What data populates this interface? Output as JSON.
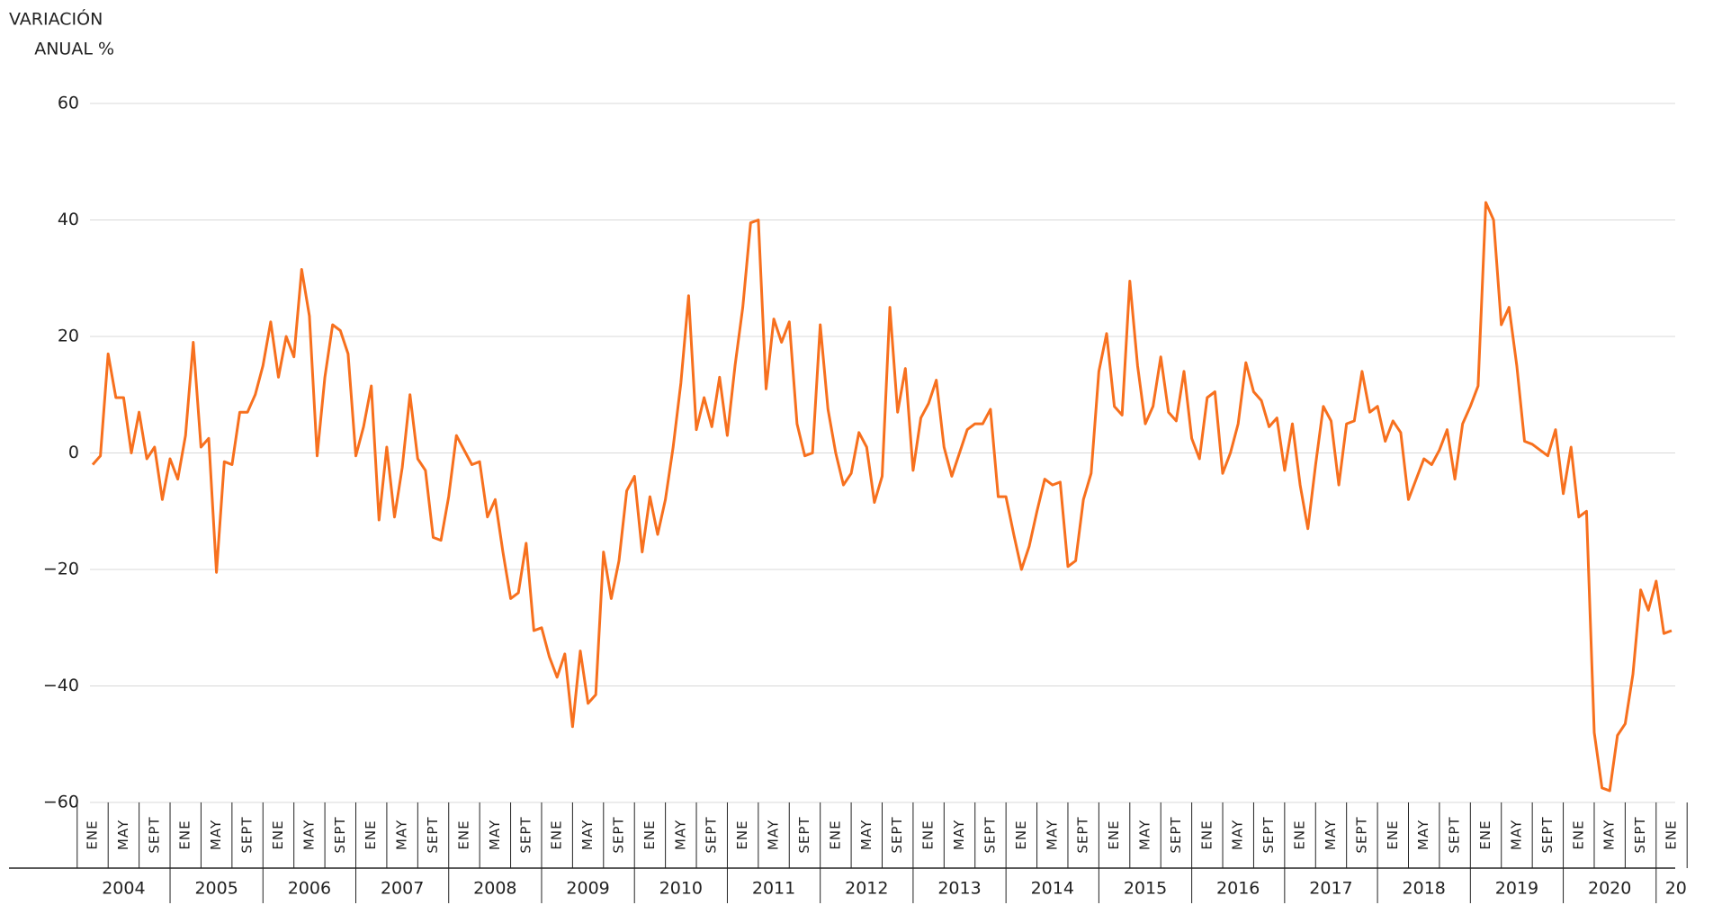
{
  "chart_data": {
    "type": "line",
    "y_title": [
      "VARIACIÓN",
      "ANUAL %"
    ],
    "years": [
      "2004",
      "2005",
      "2006",
      "2007",
      "2008",
      "2009",
      "2010",
      "2011",
      "2012",
      "2013",
      "2014",
      "2015",
      "2016",
      "2017",
      "2018",
      "2019",
      "2020",
      "20"
    ],
    "categories": [
      "ENE",
      null,
      null,
      null,
      "MAY",
      null,
      null,
      null,
      "SEPT",
      null,
      null,
      null,
      "ENE",
      null,
      null,
      null,
      "MAY",
      null,
      null,
      null,
      "SEPT",
      null,
      null,
      null,
      "ENE",
      null,
      null,
      null,
      "MAY",
      null,
      null,
      null,
      "SEPT",
      null,
      null,
      null,
      "ENE",
      null,
      null,
      null,
      "MAY",
      null,
      null,
      null,
      "SEPT",
      null,
      null,
      null,
      "ENE",
      null,
      null,
      null,
      "MAY",
      null,
      null,
      null,
      "SEPT",
      null,
      null,
      null,
      "ENE",
      null,
      null,
      null,
      "MAY",
      null,
      null,
      null,
      "SEPT",
      null,
      null,
      null,
      "ENE",
      null,
      null,
      null,
      "MAY",
      null,
      null,
      null,
      "SEPT",
      null,
      null,
      null,
      "ENE",
      null,
      null,
      null,
      "MAY",
      null,
      null,
      null,
      "SEPT",
      null,
      null,
      null,
      "ENE",
      null,
      null,
      null,
      "MAY",
      null,
      null,
      null,
      "SEPT",
      null,
      null,
      null,
      "ENE",
      null,
      null,
      null,
      "MAY",
      null,
      null,
      null,
      "SEPT",
      null,
      null,
      null,
      "ENE",
      null,
      null,
      null,
      "MAY",
      null,
      null,
      null,
      "SEPT",
      null,
      null,
      null,
      "ENE",
      null,
      null,
      null,
      "MAY",
      null,
      null,
      null,
      "SEPT",
      null,
      null,
      null,
      "ENE",
      null,
      null,
      null,
      "MAY",
      null,
      null,
      null,
      "SEPT",
      null,
      null,
      null,
      "ENE",
      null,
      null,
      null,
      "MAY",
      null,
      null,
      null,
      "SEPT",
      null,
      null,
      null,
      "ENE",
      null,
      null,
      null,
      "MAY",
      null,
      null,
      null,
      "SEPT",
      null,
      null,
      null,
      "ENE",
      null,
      null,
      null,
      "MAY",
      null,
      null,
      null,
      "SEPT",
      null,
      null,
      null,
      "ENE",
      null,
      null,
      null,
      "MAY",
      null,
      null,
      null,
      "SEPT",
      null,
      null,
      null,
      "ENE"
    ],
    "series": [
      {
        "color": "#f7701e",
        "values": [
          -2,
          -0.5,
          17,
          9.5,
          9.5,
          0,
          7,
          -1,
          1,
          -8,
          -1,
          -4.5,
          3,
          19,
          1,
          2.5,
          -20.5,
          -1.5,
          -2,
          7,
          7,
          10,
          15,
          22.5,
          13,
          20,
          16.5,
          31.5,
          23.5,
          -0.5,
          13,
          22,
          21,
          17,
          -0.5,
          4.5,
          11.5,
          -11.5,
          1,
          -11,
          -2.5,
          10,
          -1,
          -3,
          -14.5,
          -15,
          -7.5,
          3,
          0.5,
          -2,
          -1.5,
          -11,
          -8,
          -17,
          -25,
          -24,
          -15.5,
          -30.5,
          -30,
          -35,
          -38.5,
          -34.5,
          -47,
          -34,
          -43,
          -41.5,
          -17,
          -25,
          -18.5,
          -6.5,
          -4,
          -17,
          -7.5,
          -14,
          -8,
          1,
          12,
          27,
          4,
          9.5,
          4.5,
          13,
          3,
          15,
          25,
          39.5,
          40,
          11,
          23,
          19,
          22.5,
          5,
          -0.5,
          0,
          22,
          7.5,
          0,
          -5.5,
          -3.5,
          3.5,
          1,
          -8.5,
          -4,
          25,
          7,
          14.5,
          -3,
          6,
          8.5,
          12.5,
          1,
          -4,
          0,
          4,
          5,
          5,
          7.5,
          -7.5,
          -7.5,
          -14,
          -20,
          -16,
          -10,
          -4.5,
          -5.5,
          -5,
          -19.5,
          -18.5,
          -8,
          -3.5,
          14,
          20.5,
          8,
          6.5,
          29.5,
          15,
          5,
          8,
          16.5,
          7,
          5.5,
          14,
          2.5,
          -1,
          9.5,
          10.5,
          -3.5,
          0,
          5,
          15.5,
          10.5,
          9,
          4.5,
          6,
          -3,
          5,
          -5.5,
          -13,
          -2,
          8,
          5.5,
          -5.5,
          5,
          5.5,
          14,
          7,
          8,
          2,
          5.5,
          3.5,
          -8,
          -4.5,
          -1,
          -2,
          0.5,
          4,
          -4.5,
          5,
          8,
          11.5,
          43,
          40,
          22,
          25,
          15,
          2,
          1.5,
          0.5,
          -0.5,
          4,
          -7,
          1,
          -11,
          -10,
          -48,
          -57.5,
          -58,
          -48.5,
          -46.5,
          -38,
          -23.5,
          -27,
          -22,
          -31,
          -30.5
        ]
      }
    ],
    "ylim": [
      -60,
      60
    ],
    "yticks": [
      {
        "value": -60,
        "label": "−60"
      },
      {
        "value": -40,
        "label": "−40"
      },
      {
        "value": -20,
        "label": "−20"
      },
      0,
      20,
      40,
      60
    ],
    "grid": true
  }
}
